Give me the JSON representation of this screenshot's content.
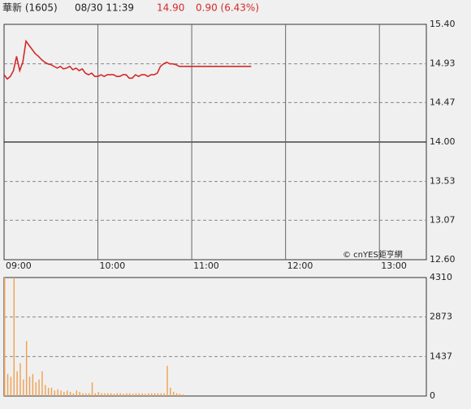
{
  "header": {
    "name": "華新 (1605)",
    "datetime": "08/30 11:39",
    "price": "14.90",
    "change": "0.90 (6.43%)"
  },
  "chart_data": [
    {
      "type": "line",
      "watermark": "© cnYES鉅亨網",
      "x": [
        0,
        2,
        4,
        6,
        8,
        10,
        12,
        14,
        16,
        18,
        20,
        22,
        24,
        26,
        28,
        30,
        32,
        34,
        36,
        38,
        40,
        42,
        44,
        46,
        48,
        50,
        52,
        54,
        56,
        58,
        60,
        62,
        64,
        66,
        68,
        70,
        72,
        74,
        76,
        78,
        80,
        82,
        84,
        86,
        88,
        90,
        92,
        94,
        96,
        98,
        100,
        102,
        104,
        106,
        108,
        110,
        112,
        114,
        116,
        118,
        120,
        122,
        124,
        126,
        128,
        130,
        132,
        134,
        136,
        138,
        140,
        142,
        144,
        146,
        148,
        150,
        152,
        154,
        156,
        158
      ],
      "series": [
        {
          "color": "#d42a2a",
          "values": [
            14.8,
            14.75,
            14.78,
            14.85,
            15.02,
            14.85,
            14.95,
            15.2,
            15.15,
            15.1,
            15.05,
            15.02,
            14.98,
            14.95,
            14.93,
            14.92,
            14.9,
            14.88,
            14.9,
            14.87,
            14.88,
            14.9,
            14.86,
            14.88,
            14.85,
            14.87,
            14.82,
            14.8,
            14.82,
            14.78,
            14.78,
            14.8,
            14.78,
            14.8,
            14.8,
            14.8,
            14.78,
            14.78,
            14.8,
            14.8,
            14.76,
            14.76,
            14.8,
            14.78,
            14.8,
            14.8,
            14.78,
            14.8,
            14.8,
            14.82,
            14.9,
            14.93,
            14.95,
            14.93,
            14.93,
            14.92,
            14.9,
            14.9,
            14.9,
            14.9,
            14.9,
            14.9,
            14.9,
            14.9,
            14.9,
            14.9,
            14.9,
            14.9,
            14.9,
            14.9,
            14.9,
            14.9,
            14.9,
            14.9,
            14.9,
            14.9,
            14.9,
            14.9,
            14.9,
            14.9
          ]
        }
      ],
      "xlim": [
        0,
        270
      ],
      "xticks": [
        {
          "value": 0,
          "label": "09:00"
        },
        {
          "value": 60,
          "label": "10:00"
        },
        {
          "value": 120,
          "label": "11:00"
        },
        {
          "value": 180,
          "label": "12:00"
        },
        {
          "value": 240,
          "label": "13:00"
        }
      ],
      "ylim": [
        12.6,
        15.4
      ],
      "yticks": [
        {
          "value": 12.6,
          "label": "12.60"
        },
        {
          "value": 13.07,
          "label": "13.07"
        },
        {
          "value": 13.53,
          "label": "13.53"
        },
        {
          "value": 14,
          "label": "14.00"
        },
        {
          "value": 14.47,
          "label": "14.47"
        },
        {
          "value": 14.93,
          "label": "14.93"
        },
        {
          "value": 15.4,
          "label": "15.40"
        }
      ],
      "baseline": 14,
      "grid": true
    },
    {
      "type": "bar",
      "x": [
        0,
        2,
        4,
        6,
        8,
        10,
        12,
        14,
        16,
        18,
        20,
        22,
        24,
        26,
        28,
        30,
        32,
        34,
        36,
        38,
        40,
        42,
        44,
        46,
        48,
        50,
        52,
        54,
        56,
        58,
        60,
        62,
        64,
        66,
        68,
        70,
        72,
        74,
        76,
        78,
        80,
        82,
        84,
        86,
        88,
        90,
        92,
        94,
        96,
        98,
        100,
        102,
        104,
        106,
        108,
        110,
        112,
        114,
        116,
        118,
        120,
        122,
        124,
        126,
        128,
        130,
        132,
        134,
        136,
        138,
        140,
        142,
        144,
        146,
        148,
        150,
        152,
        154,
        156,
        158
      ],
      "values": [
        4310,
        800,
        700,
        4310,
        900,
        1200,
        600,
        2000,
        700,
        800,
        500,
        600,
        900,
        400,
        300,
        300,
        200,
        250,
        200,
        150,
        200,
        150,
        100,
        200,
        150,
        100,
        100,
        100,
        500,
        100,
        150,
        100,
        100,
        100,
        100,
        80,
        100,
        100,
        80,
        100,
        100,
        80,
        100,
        100,
        100,
        80,
        100,
        100,
        100,
        100,
        100,
        100,
        1100,
        300,
        150,
        100,
        80,
        60,
        0,
        0,
        0,
        0,
        0,
        0,
        0,
        0,
        0,
        0,
        0,
        0,
        0,
        0,
        0,
        0,
        0,
        0,
        0,
        0,
        0,
        0
      ],
      "color": "#f0a050",
      "xlim": [
        0,
        270
      ],
      "ylim": [
        0,
        4310
      ],
      "yticks": [
        0,
        1437,
        2873,
        4310
      ],
      "grid": true
    }
  ]
}
